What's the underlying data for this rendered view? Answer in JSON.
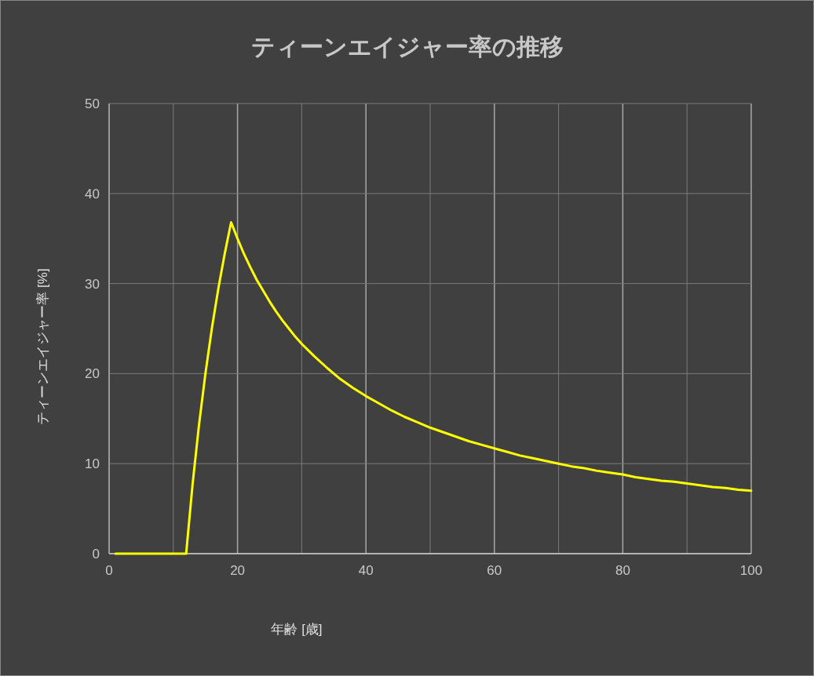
{
  "chart_data": {
    "type": "line",
    "title": "ティーンエイジャー率の推移",
    "xlabel": "年齢 [歳]",
    "ylabel": "ティーンエイジャー率 [%]",
    "x": [
      1,
      12,
      13,
      14,
      15,
      16,
      17,
      18,
      19,
      20,
      21,
      22,
      23,
      24,
      25,
      26,
      27,
      28,
      29,
      30,
      32,
      34,
      36,
      38,
      40,
      42,
      44,
      46,
      48,
      50,
      52,
      54,
      56,
      58,
      60,
      62,
      64,
      66,
      68,
      70,
      72,
      74,
      76,
      78,
      80,
      82,
      84,
      86,
      88,
      90,
      92,
      94,
      96,
      98,
      100
    ],
    "series": [
      {
        "color": "#ffff00",
        "values": [
          0,
          0,
          7.7,
          14.3,
          20.0,
          25.0,
          29.4,
          33.3,
          36.8,
          35.0,
          33.3,
          31.8,
          30.4,
          29.2,
          28.0,
          26.9,
          25.9,
          25.0,
          24.1,
          23.3,
          21.9,
          20.6,
          19.4,
          18.4,
          17.5,
          16.7,
          15.9,
          15.2,
          14.6,
          14.0,
          13.5,
          13.0,
          12.5,
          12.1,
          11.7,
          11.3,
          10.9,
          10.6,
          10.3,
          10.0,
          9.7,
          9.5,
          9.2,
          9.0,
          8.8,
          8.5,
          8.3,
          8.1,
          8.0,
          7.8,
          7.6,
          7.4,
          7.3,
          7.1,
          7.0
        ]
      }
    ],
    "xlim": [
      0,
      100
    ],
    "xticks": [
      0,
      {
        "value": 10,
        "label": null
      },
      20,
      {
        "value": 30,
        "label": null
      },
      40,
      {
        "value": 50,
        "label": null
      },
      60,
      {
        "value": 70,
        "label": null
      },
      80,
      {
        "value": 90,
        "label": null
      },
      100
    ],
    "ylim": [
      0,
      50
    ],
    "yticks": [
      0,
      10,
      20,
      30,
      40,
      50
    ],
    "grid": true,
    "marker": "none",
    "line_style": "solid"
  }
}
